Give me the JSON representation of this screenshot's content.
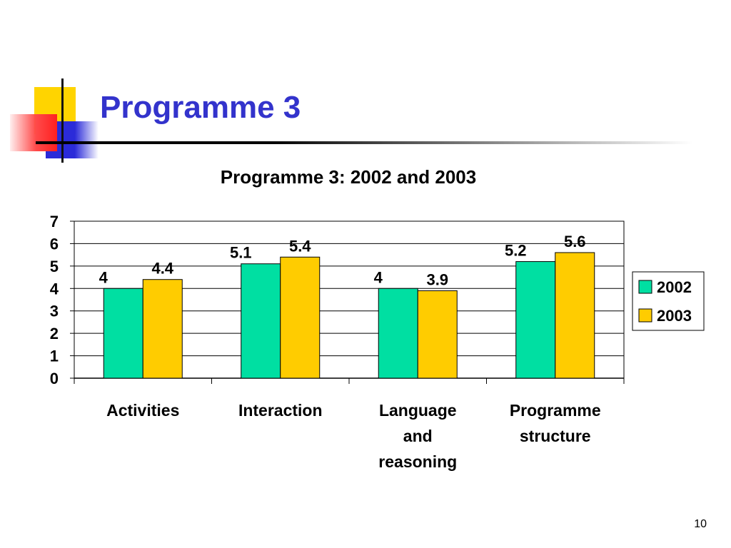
{
  "slide": {
    "title": "Programme 3",
    "page_number": "10"
  },
  "colors": {
    "title": "#3333cc",
    "series_2002": "#00dfa2",
    "series_2003": "#ffcc00"
  },
  "chart_data": {
    "type": "bar",
    "title": "Programme 3: 2002 and 2003",
    "categories": [
      [
        "Activities"
      ],
      [
        "Interaction"
      ],
      [
        "Language",
        "and",
        "reasoning"
      ],
      [
        "Programme",
        "structure"
      ]
    ],
    "series": [
      {
        "name": "2002",
        "values": [
          4,
          5.1,
          4,
          5.2
        ],
        "labels": [
          "4",
          "5.1",
          "4",
          "5.2"
        ],
        "color": "#00dfa2"
      },
      {
        "name": "2003",
        "values": [
          4.4,
          5.4,
          3.9,
          5.6
        ],
        "labels": [
          "4.4",
          "5.4",
          "3.9",
          "5.6"
        ],
        "color": "#ffcc00"
      }
    ],
    "ylim": [
      0,
      7
    ],
    "yticks": [
      "0",
      "1",
      "2",
      "3",
      "4",
      "5",
      "6",
      "7"
    ],
    "grid": true,
    "legend": "right"
  }
}
